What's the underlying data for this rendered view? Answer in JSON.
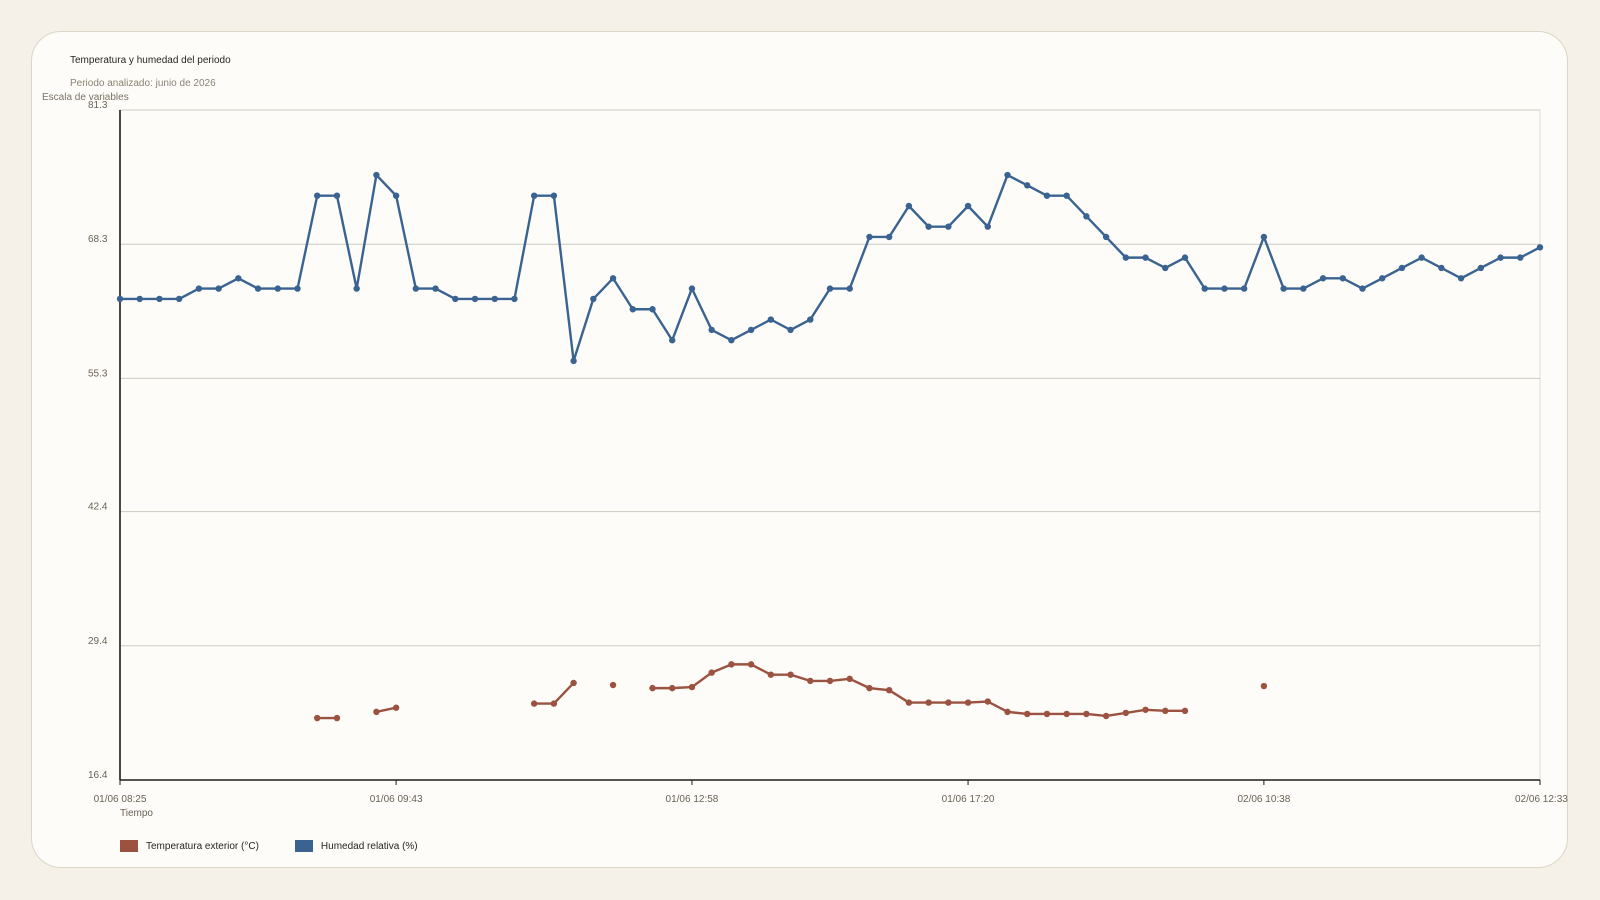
{
  "chart_data": {
    "type": "line",
    "title": "Temperatura y humedad del periodo",
    "subtitle": "Periodo analizado: junio de 2026",
    "ylabel": "Escala de variables",
    "xlabel": "Tiempo",
    "ylim": [
      16.4,
      81.3
    ],
    "yticks": [
      "16.4",
      "29.4",
      "42.4",
      "55.3",
      "68.3",
      "81.3"
    ],
    "xtick_labels": [
      "01/06 08:25",
      "01/06 09:43",
      "01/06 12:58",
      "01/06 17:20",
      "02/06 10:38",
      "02/06 12:33"
    ],
    "grid": true,
    "legend_position": "bottom-left",
    "series": [
      {
        "name": "Temperatura exterior (°C)",
        "color": "#9b5240",
        "values": [
          null,
          null,
          null,
          null,
          null,
          null,
          null,
          null,
          null,
          null,
          22.4,
          22.4,
          null,
          23.0,
          23.4,
          null,
          null,
          null,
          null,
          null,
          null,
          23.8,
          23.8,
          25.8,
          null,
          25.6,
          null,
          25.3,
          25.3,
          25.4,
          26.8,
          27.6,
          27.6,
          26.6,
          26.6,
          26.0,
          26.0,
          26.2,
          25.3,
          25.1,
          23.9,
          23.9,
          23.9,
          23.9,
          24.0,
          23.0,
          22.8,
          22.8,
          22.8,
          22.8,
          22.6,
          22.9,
          23.2,
          23.1,
          23.1,
          null,
          null,
          null,
          25.5,
          null,
          null,
          null,
          null,
          null,
          null,
          null,
          null,
          null,
          null,
          null,
          null,
          null,
          null
        ]
      },
      {
        "name": "Humedad relativa (%)",
        "color": "#3a6391",
        "values": [
          63.0,
          63.0,
          63.0,
          63.0,
          64.0,
          64.0,
          65.0,
          64.0,
          64.0,
          64.0,
          73.0,
          73.0,
          64.0,
          75.0,
          73.0,
          64.0,
          64.0,
          63.0,
          63.0,
          63.0,
          63.0,
          73.0,
          73.0,
          57.0,
          63.0,
          65.0,
          62.0,
          62.0,
          59.0,
          64.0,
          60.0,
          59.0,
          60.0,
          61.0,
          60.0,
          61.0,
          64.0,
          64.0,
          69.0,
          69.0,
          72.0,
          70.0,
          70.0,
          72.0,
          70.0,
          75.0,
          74.0,
          73.0,
          73.0,
          71.0,
          69.0,
          67.0,
          67.0,
          66.0,
          67.0,
          64.0,
          64.0,
          64.0,
          69.0,
          64.0,
          64.0,
          65.0,
          65.0,
          64.0,
          65.0,
          66.0,
          67.0,
          66.0,
          65.0,
          66.0,
          67.0,
          67.0,
          68.0
        ]
      }
    ]
  }
}
